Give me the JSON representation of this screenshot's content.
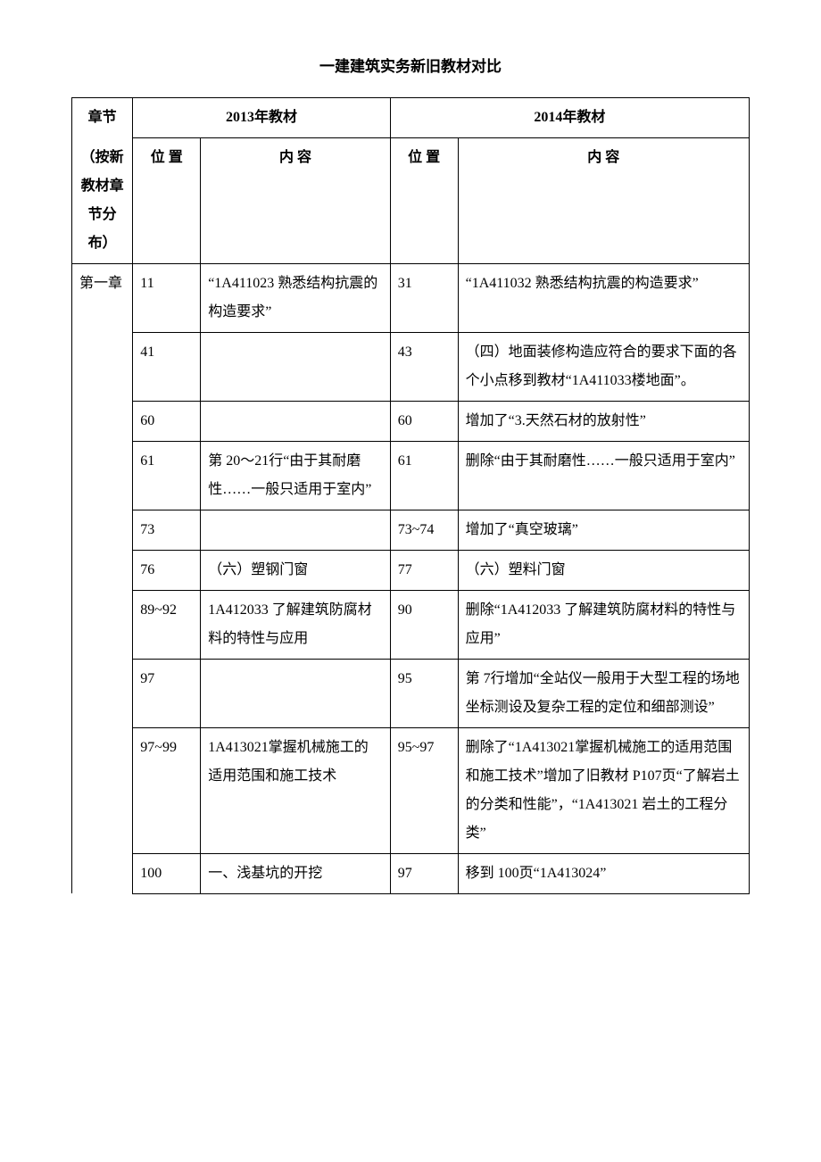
{
  "title": "一建建筑实务新旧教材对比",
  "headers": {
    "chapter": "章节",
    "chapter_sub": "（按新教材章节分布）",
    "year2013": "2013年教材",
    "year2014": "2014年教材",
    "position": "位  置",
    "content": "内  容"
  },
  "chapter1_label": "第一章",
  "rows": [
    {
      "pos2013": "11",
      "cont2013": "“1A411023  熟悉结构抗震的构造要求”",
      "pos2014": "31",
      "cont2014": "“1A411032  熟悉结构抗震的构造要求”"
    },
    {
      "pos2013": "41",
      "cont2013": "",
      "pos2014": "43",
      "cont2014": "（四）地面装修构造应符合的要求下面的各个小点移到教材“1A411033楼地面”。"
    },
    {
      "pos2013": "60",
      "cont2013": "",
      "pos2014": "60",
      "cont2014": "增加了“3.天然石材的放射性”"
    },
    {
      "pos2013": "61",
      "cont2013": "第 20～21行“由于其耐磨性……一般只适用于室内”",
      "pos2014": "61",
      "cont2014": "删除“由于其耐磨性……一般只适用于室内”"
    },
    {
      "pos2013": "73",
      "cont2013": "",
      "pos2014": "73~74",
      "cont2014": "增加了“真空玻璃”"
    },
    {
      "pos2013": "76",
      "cont2013": "（六）塑钢门窗",
      "pos2014": "77",
      "cont2014": "（六）塑料门窗"
    },
    {
      "pos2013": "89~92",
      "cont2013": "1A412033  了解建筑防腐材料的特性与应用",
      "pos2014": "90",
      "cont2014": "删除“1A412033  了解建筑防腐材料的特性与应用”"
    },
    {
      "pos2013": "97",
      "cont2013": "",
      "pos2014": "95",
      "cont2014": "第 7行增加“全站仪一般用于大型工程的场地坐标测设及复杂工程的定位和细部测设”"
    },
    {
      "pos2013": "97~99",
      "cont2013": "1A413021掌握机械施工的适用范围和施工技术",
      "pos2014": "95~97",
      "cont2014": "删除了“1A413021掌握机械施工的适用范围和施工技术”增加了旧教材 P107页“了解岩土的分类和性能”，“1A413021  岩土的工程分类”"
    },
    {
      "pos2013": "100",
      "cont2013": "一、浅基坑的开挖",
      "pos2014": "97",
      "cont2014": "移到 100页“1A413024”"
    }
  ]
}
